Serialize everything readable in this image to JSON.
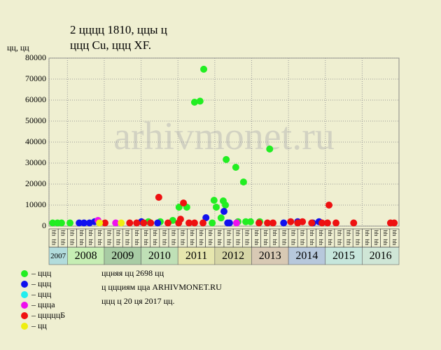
{
  "chart_data": {
    "type": "scatter",
    "title": "2 цццц 1810, ццы ц",
    "subtitle": "ццц Cu, ццц XF.",
    "y_label": "цц, цц",
    "watermark": "arhivmonet.ru",
    "xlim": [
      2007.5,
      2017.0
    ],
    "ylim": [
      0,
      80000
    ],
    "yticks": [
      0,
      10000,
      20000,
      30000,
      40000,
      50000,
      60000,
      70000,
      80000
    ],
    "grid": true,
    "quarter_label": "цц",
    "year_bands": [
      {
        "label": "2007",
        "from": 2007.5,
        "to": 2008.0,
        "color": "#b2dcdc"
      },
      {
        "label": "2008",
        "from": 2008.0,
        "to": 2009.0,
        "color": "#c6eeb4"
      },
      {
        "label": "2009",
        "from": 2009.0,
        "to": 2010.0,
        "color": "#a8cca4"
      },
      {
        "label": "2010",
        "from": 2010.0,
        "to": 2011.0,
        "color": "#bfe0b6"
      },
      {
        "label": "2011",
        "from": 2011.0,
        "to": 2012.0,
        "color": "#e6e6ae"
      },
      {
        "label": "2012",
        "from": 2012.0,
        "to": 2013.0,
        "color": "#d6d6a6"
      },
      {
        "label": "2013",
        "from": 2013.0,
        "to": 2014.0,
        "color": "#d8c9b4"
      },
      {
        "label": "2014",
        "from": 2014.0,
        "to": 2015.0,
        "color": "#b7c8dc"
      },
      {
        "label": "2015",
        "from": 2015.0,
        "to": 2016.0,
        "color": "#c6e6dc"
      },
      {
        "label": "2016",
        "from": 2016.0,
        "to": 2017.0,
        "color": "#cfe6d6"
      }
    ],
    "series": [
      {
        "name": "– ццц",
        "color": "#22ee22",
        "x": [
          2007.6,
          2007.73,
          2007.84,
          2008.07,
          2010.2,
          2010.52,
          2010.86,
          2011.03,
          2011.24,
          2011.45,
          2011.6,
          2011.7,
          2011.93,
          2011.98,
          2012.04,
          2012.17,
          2012.23,
          2012.29,
          2012.31,
          2012.57,
          2012.63,
          2012.78,
          2012.84,
          2012.97,
          2013.22,
          2013.49
        ],
        "values": [
          1500,
          1500,
          1500,
          1500,
          2100,
          2100,
          2700,
          9000,
          9000,
          59000,
          59500,
          74700,
          1500,
          12300,
          9000,
          3900,
          12000,
          10000,
          31700,
          28000,
          2100,
          21000,
          2100,
          2100,
          2100,
          36700
        ]
      },
      {
        "name": "– ццц",
        "color": "#1111ee",
        "x": [
          2008.32,
          2008.45,
          2008.6,
          2008.74,
          2010.01,
          2010.45,
          2011.76,
          2012.25,
          2012.35,
          2012.4,
          2013.87,
          2014.25,
          2014.66,
          2014.83
        ],
        "values": [
          1500,
          1500,
          1500,
          2100,
          2100,
          1500,
          4000,
          7000,
          1500,
          1500,
          1500,
          2100,
          1500,
          2100
        ]
      },
      {
        "name": "– ццц",
        "color": "#22eeee",
        "x": [],
        "values": []
      },
      {
        "name": "– ццца",
        "color": "#ee11ee",
        "x": [
          2008.83,
          2009.31,
          2012.59
        ],
        "values": [
          2700,
          1500,
          1500
        ]
      },
      {
        "name": "– цццццБ",
        "color": "#ee1111",
        "x": [
          2009.02,
          2009.69,
          2009.88,
          2010.07,
          2010.26,
          2010.48,
          2010.73,
          2011.02,
          2011.07,
          2011.15,
          2011.3,
          2011.45,
          2011.68,
          2013.2,
          2013.43,
          2013.58,
          2014.06,
          2014.25,
          2014.38,
          2014.63,
          2014.91,
          2015.06,
          2015.1,
          2015.29,
          2015.77,
          2016.77,
          2016.87
        ],
        "values": [
          1500,
          1500,
          1500,
          1500,
          1500,
          13700,
          1500,
          1500,
          3300,
          11000,
          1500,
          1500,
          1500,
          1500,
          1500,
          1500,
          2100,
          1500,
          2100,
          1500,
          1500,
          1500,
          10000,
          1500,
          1500,
          1500,
          1500
        ]
      },
      {
        "name": "– цц",
        "color": "#eeee11",
        "x": [
          2008.87,
          2009.46
        ],
        "values": [
          1500,
          1500
        ]
      }
    ],
    "notes": [
      "ццняя цц 2698 цц",
      "ц ццциям цца ARHIVMONET.RU",
      "ццц ц 20 ця 2017 цц."
    ]
  }
}
